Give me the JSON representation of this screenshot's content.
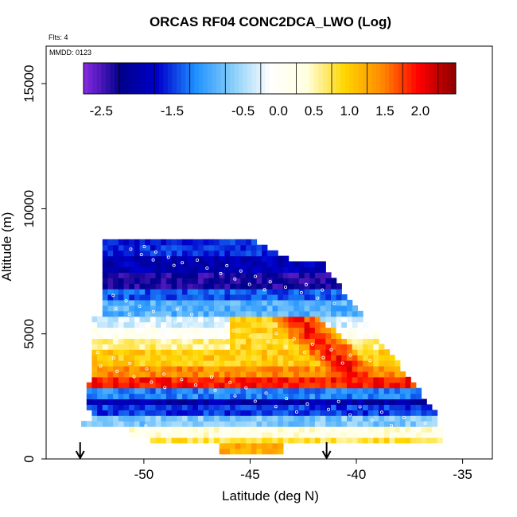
{
  "title": "ORCAS RF04 CONC2DCA_LWO (Log)",
  "flights_note": "Flts: 4",
  "date_note": "MMDD: 0123",
  "chart_data": {
    "type": "heatmap",
    "title": "ORCAS RF04 CONC2DCA_LWO (Log)",
    "xlabel": "Latitude (deg N)",
    "ylabel": "Altitude (m)",
    "xlim": [
      -54.6,
      -33.6
    ],
    "ylim": [
      0,
      16500
    ],
    "x_ticks": [
      -50,
      -45,
      -40,
      -35
    ],
    "y_ticks": [
      0,
      5000,
      10000,
      15000
    ],
    "colorbar": {
      "range": [
        -2.75,
        2.5
      ],
      "ticks": [
        -2.5,
        -1.5,
        -0.5,
        0.0,
        0.5,
        1.0,
        1.5,
        2.0
      ],
      "tick_labels": [
        "-2.5",
        "-1.5",
        "-0.5",
        "0.0",
        "0.5",
        "1.0",
        "1.5",
        "2.0"
      ],
      "colors": [
        "#8a2be2",
        "#00008b",
        "#0000cd",
        "#1e90ff",
        "#87cefa",
        "#ffffff",
        "#ffffe0",
        "#ffd700",
        "#ff8c00",
        "#ff0000",
        "#8b0000"
      ]
    },
    "arrows_latitude": [
      -53,
      -41.4
    ],
    "profiles": [
      {
        "lat_range": [
          -52.2,
          -43.5
        ],
        "alt_bottom": 800,
        "alt_top": 8700
      },
      {
        "lat_range": [
          -43.5,
          -36.0
        ],
        "alt_bottom": 500,
        "alt_top": 7800
      }
    ],
    "bands": [
      {
        "alt": [
          8000,
          8700
        ],
        "value": -1.6
      },
      {
        "alt": [
          7400,
          8000
        ],
        "value": -1.9
      },
      {
        "alt": [
          6800,
          7400
        ],
        "value": -2.3
      },
      {
        "alt": [
          6200,
          6800
        ],
        "value": -1.4
      },
      {
        "alt": [
          5700,
          6200
        ],
        "value": -0.9
      },
      {
        "alt": [
          5200,
          5700
        ],
        "value": -0.3
      },
      {
        "alt": [
          4700,
          5200
        ],
        "value": 0.1
      },
      {
        "alt": [
          4200,
          4700
        ],
        "value": 0.6
      },
      {
        "alt": [
          3700,
          4200
        ],
        "value": 1.0
      },
      {
        "alt": [
          3200,
          3700
        ],
        "value": 1.4
      },
      {
        "alt": [
          2800,
          3200
        ],
        "value": 1.9
      },
      {
        "alt": [
          2400,
          2800
        ],
        "value": -1.2
      },
      {
        "alt": [
          2000,
          2400
        ],
        "value": -2.0
      },
      {
        "alt": [
          1600,
          2000
        ],
        "value": -1.5
      },
      {
        "alt": [
          1200,
          1600
        ],
        "value": -0.7
      },
      {
        "alt": [
          800,
          1200
        ],
        "value": 0.3
      },
      {
        "alt": [
          500,
          800
        ],
        "value": 0.8
      },
      {
        "alt": [
          200,
          500
        ],
        "value": 1.2
      }
    ]
  }
}
